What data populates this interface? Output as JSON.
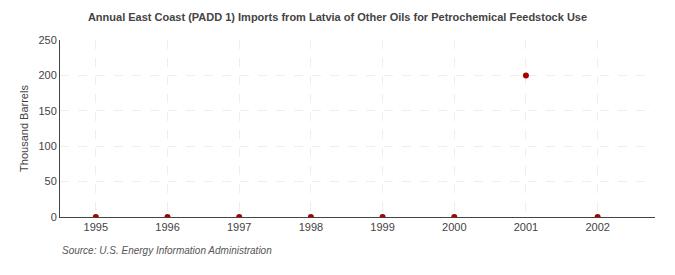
{
  "chart_data": {
    "type": "scatter",
    "title": "Annual East Coast (PADD 1) Imports from Latvia of Other Oils for Petrochemical Feedstock Use",
    "ylabel": "Thousand Barrels",
    "annotations": [
      "Source: U.S. Energy Information Administration"
    ],
    "x": [
      1995,
      1996,
      1997,
      1998,
      1999,
      2000,
      2001,
      2002
    ],
    "values": [
      0,
      0,
      0,
      0,
      0,
      0,
      200,
      0
    ],
    "color": "#aa0000",
    "xlim": [
      1994.5,
      2002.8
    ],
    "xticks": [
      1995,
      1996,
      1997,
      1998,
      1999,
      2000,
      2001,
      2002
    ],
    "ylim": [
      0,
      250
    ],
    "yticks": [
      0,
      50,
      100,
      150,
      200,
      250
    ],
    "grid": true
  }
}
